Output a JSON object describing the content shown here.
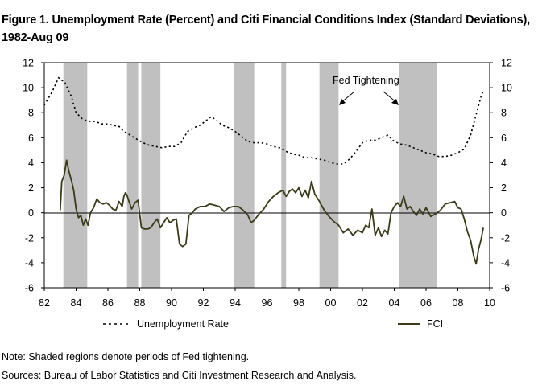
{
  "title": "Figure 1. Unemployment Rate (Percent) and Citi Financial Conditions Index (Standard Deviations), 1982-Aug 09",
  "note": "Note: Shaded regions denote periods of Fed tightening.",
  "sources": "Sources: Bureau of Labor Statistics and Citi Investment Research and Analysis.",
  "chart_data": {
    "type": "line",
    "title": "Figure 1. Unemployment Rate (Percent) and Citi Financial Conditions Index (Standard Deviations), 1982-Aug 09",
    "xlim": [
      1982,
      2010
    ],
    "ylim": [
      -6,
      12
    ],
    "x_ticks": [
      "82",
      "84",
      "86",
      "88",
      "90",
      "92",
      "94",
      "96",
      "98",
      "00",
      "02",
      "04",
      "06",
      "08",
      "10"
    ],
    "y_ticks": [
      "12",
      "10",
      "8",
      "6",
      "4",
      "2",
      "0",
      "-2",
      "-4",
      "-6"
    ],
    "grid": false,
    "legend_position": "bottom",
    "annotation": "Fed Tightening",
    "shaded_periods": [
      [
        1983.2,
        1984.7
      ],
      [
        1987.2,
        1987.9
      ],
      [
        1988.1,
        1989.3
      ],
      [
        1993.9,
        1995.2
      ],
      [
        1996.9,
        1997.2
      ],
      [
        1999.3,
        2000.5
      ],
      [
        2004.3,
        2006.7
      ]
    ],
    "series": [
      {
        "name": "Unemployment Rate",
        "style": "dotted",
        "color": "#000000",
        "x": [
          1982.0,
          1982.5,
          1982.9,
          1983.3,
          1983.7,
          1984.0,
          1984.4,
          1984.8,
          1985.2,
          1985.6,
          1986.0,
          1986.3,
          1986.7,
          1987.0,
          1987.4,
          1987.8,
          1988.2,
          1988.6,
          1989.0,
          1989.4,
          1989.8,
          1990.2,
          1990.6,
          1991.0,
          1991.4,
          1991.8,
          1992.2,
          1992.5,
          1992.8,
          1993.2,
          1993.6,
          1994.0,
          1994.4,
          1994.8,
          1995.2,
          1995.6,
          1996.0,
          1996.4,
          1996.8,
          1997.2,
          1997.6,
          1998.0,
          1998.4,
          1998.8,
          1999.2,
          1999.6,
          2000.0,
          2000.4,
          2000.8,
          2001.2,
          2001.6,
          2002.0,
          2002.4,
          2002.8,
          2003.2,
          2003.6,
          2004.0,
          2004.4,
          2004.8,
          2005.2,
          2005.6,
          2006.0,
          2006.4,
          2006.8,
          2007.2,
          2007.6,
          2008.0,
          2008.4,
          2008.8,
          2009.2,
          2009.5,
          2009.65
        ],
        "values": [
          8.6,
          9.7,
          10.8,
          10.4,
          9.3,
          8.0,
          7.5,
          7.3,
          7.3,
          7.1,
          7.1,
          7.0,
          6.9,
          6.5,
          6.2,
          5.9,
          5.6,
          5.4,
          5.3,
          5.2,
          5.3,
          5.3,
          5.6,
          6.5,
          6.8,
          7.0,
          7.4,
          7.7,
          7.4,
          7.0,
          6.8,
          6.5,
          6.1,
          5.7,
          5.6,
          5.6,
          5.5,
          5.3,
          5.2,
          4.9,
          4.7,
          4.6,
          4.4,
          4.4,
          4.3,
          4.2,
          4.0,
          3.9,
          3.9,
          4.3,
          4.9,
          5.6,
          5.8,
          5.8,
          6.0,
          6.2,
          5.7,
          5.5,
          5.4,
          5.2,
          5.0,
          4.8,
          4.7,
          4.5,
          4.5,
          4.6,
          4.8,
          5.1,
          6.2,
          8.1,
          9.5,
          9.8
        ]
      },
      {
        "name": "FCI",
        "style": "solid",
        "color": "#3a3a18",
        "x": [
          1983.0,
          1983.1,
          1983.25,
          1983.4,
          1983.55,
          1983.7,
          1983.85,
          1984.0,
          1984.15,
          1984.3,
          1984.45,
          1984.6,
          1984.75,
          1984.9,
          1985.1,
          1985.3,
          1985.5,
          1985.7,
          1985.9,
          1986.1,
          1986.3,
          1986.5,
          1986.7,
          1986.9,
          1987.0,
          1987.1,
          1987.2,
          1987.35,
          1987.5,
          1987.7,
          1987.9,
          1988.1,
          1988.3,
          1988.5,
          1988.7,
          1988.9,
          1989.1,
          1989.3,
          1989.5,
          1989.7,
          1989.9,
          1990.1,
          1990.3,
          1990.5,
          1990.7,
          1990.9,
          1991.1,
          1991.3,
          1991.5,
          1991.8,
          1992.1,
          1992.4,
          1992.7,
          1993.0,
          1993.3,
          1993.6,
          1993.9,
          1994.2,
          1994.5,
          1994.8,
          1995.0,
          1995.2,
          1995.5,
          1995.8,
          1996.1,
          1996.4,
          1996.7,
          1997.0,
          1997.2,
          1997.4,
          1997.6,
          1997.8,
          1998.0,
          1998.2,
          1998.4,
          1998.6,
          1998.8,
          1999.0,
          1999.3,
          1999.6,
          1999.9,
          2000.2,
          2000.5,
          2000.8,
          2001.1,
          2001.4,
          2001.7,
          2002.0,
          2002.2,
          2002.4,
          2002.6,
          2002.8,
          2003.0,
          2003.2,
          2003.4,
          2003.6,
          2003.8,
          2004.0,
          2004.2,
          2004.4,
          2004.6,
          2004.8,
          2005.0,
          2005.2,
          2005.4,
          2005.6,
          2005.8,
          2006.0,
          2006.3,
          2006.6,
          2006.9,
          2007.2,
          2007.5,
          2007.8,
          2008.0,
          2008.2,
          2008.4,
          2008.6,
          2008.8,
          2009.0,
          2009.15,
          2009.3,
          2009.45,
          2009.6
        ],
        "values": [
          0.2,
          2.5,
          3.0,
          4.2,
          3.3,
          2.6,
          1.8,
          0.3,
          -0.4,
          -0.2,
          -1.0,
          -0.5,
          -1.0,
          0.0,
          0.4,
          1.1,
          0.8,
          0.7,
          0.8,
          0.6,
          0.3,
          0.2,
          0.9,
          0.5,
          1.3,
          1.6,
          1.4,
          0.8,
          0.3,
          0.8,
          1.0,
          -1.2,
          -1.3,
          -1.3,
          -1.2,
          -0.8,
          -0.5,
          -1.2,
          -0.8,
          -0.4,
          -0.8,
          -0.6,
          -0.5,
          -2.5,
          -2.7,
          -2.5,
          -0.2,
          0.0,
          0.3,
          0.5,
          0.5,
          0.7,
          0.6,
          0.5,
          0.1,
          0.4,
          0.5,
          0.5,
          0.2,
          -0.2,
          -0.8,
          -0.6,
          -0.1,
          0.3,
          0.9,
          1.3,
          1.6,
          1.8,
          1.3,
          1.7,
          1.9,
          1.6,
          2.0,
          1.3,
          1.8,
          1.2,
          2.5,
          1.5,
          0.9,
          0.2,
          -0.3,
          -0.7,
          -1.0,
          -1.6,
          -1.3,
          -1.8,
          -1.4,
          -1.6,
          -1.0,
          -1.2,
          0.3,
          -1.8,
          -1.2,
          -1.9,
          -1.4,
          -1.7,
          0.0,
          0.5,
          0.8,
          0.5,
          1.3,
          0.3,
          0.5,
          0.1,
          -0.2,
          0.3,
          -0.1,
          0.4,
          -0.3,
          -0.1,
          0.2,
          0.7,
          0.8,
          0.9,
          0.4,
          0.3,
          -0.5,
          -1.5,
          -2.2,
          -3.5,
          -4.1,
          -2.9,
          -2.2,
          -1.2
        ]
      }
    ]
  }
}
